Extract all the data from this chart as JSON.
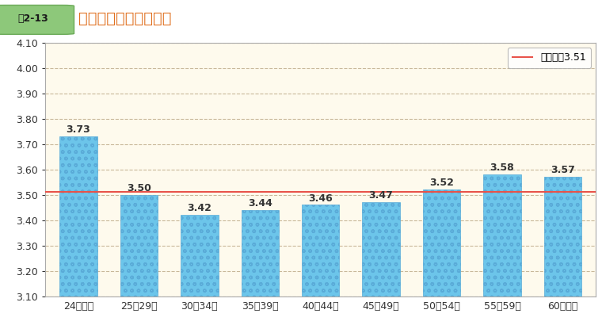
{
  "title": "年齢別の回答の平均値",
  "fig_label": "囲2-13",
  "categories": [
    "24歳以下",
    "25～29歳",
    "30～34歳",
    "35～39歳",
    "40～44歳",
    "45～49歳",
    "50～54歳",
    "55～59歳",
    "60歳以上"
  ],
  "values": [
    3.73,
    3.5,
    3.42,
    3.44,
    3.46,
    3.47,
    3.52,
    3.58,
    3.57
  ],
  "bar_color": "#6CC5EA",
  "bar_edge_color": "#5AABD8",
  "mean_line": 3.51,
  "mean_label": "総平均値3.51",
  "mean_color": "#E8534A",
  "ylim": [
    3.1,
    4.1
  ],
  "yticks": [
    3.1,
    3.2,
    3.3,
    3.4,
    3.5,
    3.6,
    3.7,
    3.8,
    3.9,
    4.0,
    4.1
  ],
  "grid_color": "#C8B89A",
  "bg_color": "#FEFAED",
  "outer_bg_color": "#FFFFFF",
  "title_fontsize": 14,
  "label_fontsize": 9,
  "tick_fontsize": 9,
  "value_fontsize": 9,
  "fig_label_bg": "#8DC87A",
  "fig_label_border": "#6BAA58",
  "fig_label_text_color": "#FFFFFF",
  "title_color": "#E07020"
}
